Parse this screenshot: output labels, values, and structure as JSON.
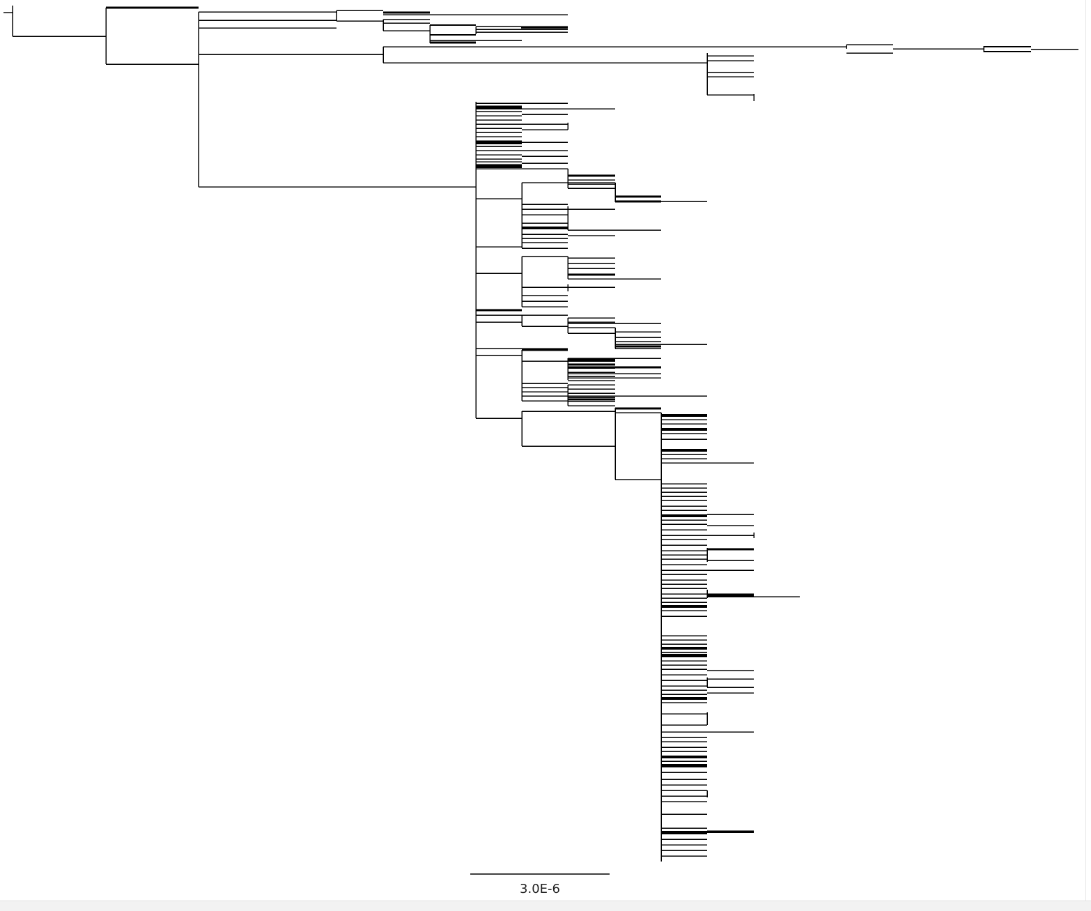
{
  "viewer": {
    "background_color": "#ffffff",
    "branch_color": "#000000"
  },
  "scale_bar": {
    "label": "3.0E-6"
  }
}
